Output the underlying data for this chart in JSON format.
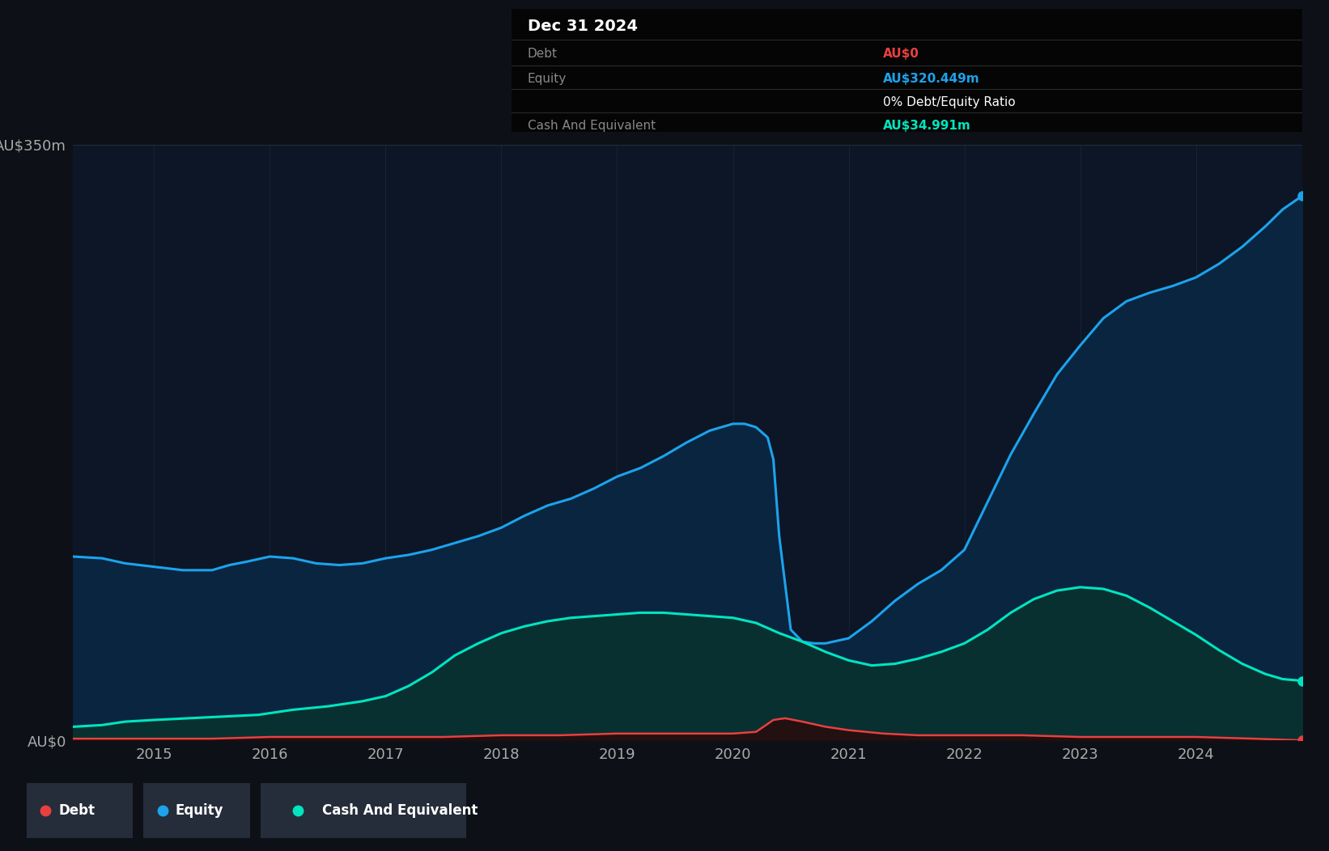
{
  "background_color": "#0d1117",
  "plot_bg_color": "#0c1626",
  "title_box": {
    "date": "Dec 31 2024",
    "debt_label": "Debt",
    "debt_value": "AU$0",
    "equity_label": "Equity",
    "equity_value": "AU$320.449m",
    "ratio_label": "0% Debt/Equity Ratio",
    "cash_label": "Cash And Equivalent",
    "cash_value": "AU$34.991m"
  },
  "ylim": [
    0,
    350
  ],
  "ylabel_color": "#aaaaaa",
  "grid_color": "#1e2d3d",
  "equity_color": "#1ca3ec",
  "equity_fill": "#0a2540",
  "cash_color": "#00e5c0",
  "cash_fill": "#083030",
  "debt_color": "#e84040",
  "debt_fill": "#2a0808",
  "legend_bg": "#252d3a",
  "xmin": 2014.3,
  "xmax": 2024.92,
  "xtick_years": [
    2015,
    2016,
    2017,
    2018,
    2019,
    2020,
    2021,
    2022,
    2023,
    2024
  ],
  "legend_items": [
    {
      "label": "Debt",
      "color": "#e84040"
    },
    {
      "label": "Equity",
      "color": "#1ca3ec"
    },
    {
      "label": "Cash And Equivalent",
      "color": "#00e5c0"
    }
  ],
  "x_equity": [
    2014.3,
    2014.55,
    2014.75,
    2015.0,
    2015.25,
    2015.5,
    2015.65,
    2015.8,
    2016.0,
    2016.2,
    2016.4,
    2016.6,
    2016.8,
    2017.0,
    2017.2,
    2017.4,
    2017.6,
    2017.8,
    2018.0,
    2018.2,
    2018.4,
    2018.6,
    2018.8,
    2019.0,
    2019.2,
    2019.4,
    2019.6,
    2019.8,
    2020.0,
    2020.1,
    2020.2,
    2020.3,
    2020.35,
    2020.4,
    2020.5,
    2020.6,
    2020.7,
    2020.8,
    2021.0,
    2021.2,
    2021.4,
    2021.6,
    2021.8,
    2022.0,
    2022.2,
    2022.4,
    2022.6,
    2022.8,
    2023.0,
    2023.2,
    2023.4,
    2023.6,
    2023.8,
    2024.0,
    2024.2,
    2024.4,
    2024.6,
    2024.75,
    2024.92
  ],
  "y_equity": [
    108,
    107,
    104,
    102,
    100,
    100,
    103,
    105,
    108,
    107,
    104,
    103,
    104,
    107,
    109,
    112,
    116,
    120,
    125,
    132,
    138,
    142,
    148,
    155,
    160,
    167,
    175,
    182,
    186,
    186,
    184,
    178,
    165,
    120,
    65,
    58,
    57,
    57,
    60,
    70,
    82,
    92,
    100,
    112,
    140,
    168,
    192,
    215,
    232,
    248,
    258,
    263,
    267,
    272,
    280,
    290,
    302,
    312,
    320
  ],
  "x_cash": [
    2014.3,
    2014.55,
    2014.75,
    2015.0,
    2015.3,
    2015.6,
    2015.9,
    2016.2,
    2016.5,
    2016.8,
    2017.0,
    2017.2,
    2017.4,
    2017.6,
    2017.8,
    2018.0,
    2018.2,
    2018.4,
    2018.6,
    2018.8,
    2019.0,
    2019.2,
    2019.4,
    2019.6,
    2019.8,
    2020.0,
    2020.2,
    2020.4,
    2020.6,
    2020.8,
    2021.0,
    2021.2,
    2021.4,
    2021.6,
    2021.8,
    2022.0,
    2022.2,
    2022.4,
    2022.6,
    2022.8,
    2023.0,
    2023.2,
    2023.4,
    2023.6,
    2023.8,
    2024.0,
    2024.2,
    2024.4,
    2024.6,
    2024.75,
    2024.92
  ],
  "y_cash": [
    8,
    9,
    11,
    12,
    13,
    14,
    15,
    18,
    20,
    23,
    26,
    32,
    40,
    50,
    57,
    63,
    67,
    70,
    72,
    73,
    74,
    75,
    75,
    74,
    73,
    72,
    69,
    63,
    58,
    52,
    47,
    44,
    45,
    48,
    52,
    57,
    65,
    75,
    83,
    88,
    90,
    89,
    85,
    78,
    70,
    62,
    53,
    45,
    39,
    36,
    35
  ],
  "x_debt": [
    2014.3,
    2014.6,
    2015.0,
    2015.5,
    2016.0,
    2016.5,
    2017.0,
    2017.5,
    2018.0,
    2018.5,
    2019.0,
    2019.5,
    2020.0,
    2020.2,
    2020.35,
    2020.45,
    2020.6,
    2020.8,
    2021.0,
    2021.3,
    2021.6,
    2022.0,
    2022.5,
    2023.0,
    2023.5,
    2024.0,
    2024.5,
    2024.92
  ],
  "y_debt": [
    1,
    1,
    1,
    1,
    2,
    2,
    2,
    2,
    3,
    3,
    4,
    4,
    4,
    5,
    12,
    13,
    11,
    8,
    6,
    4,
    3,
    3,
    3,
    2,
    2,
    2,
    1,
    0
  ]
}
